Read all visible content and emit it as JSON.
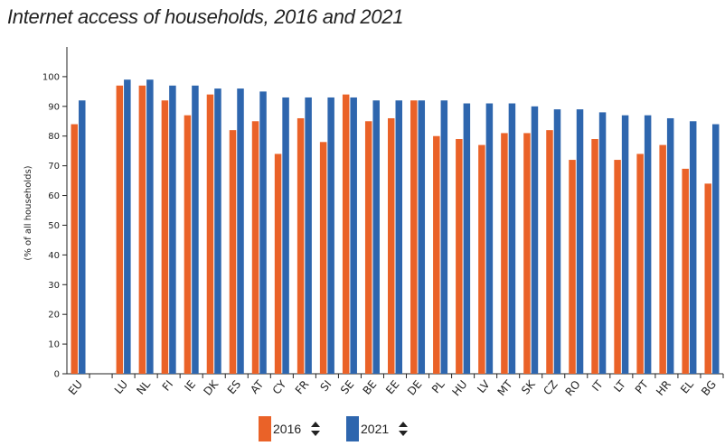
{
  "title": "Internet access of households, 2016 and 2021",
  "colors": {
    "series_2016": "#ea6228",
    "series_2021": "#2e66ae",
    "axis": "#222222"
  },
  "legend": [
    {
      "label": "2016",
      "icon": "sort-icon"
    },
    {
      "label": "2021",
      "icon": "sort-icon"
    }
  ],
  "chart_data": {
    "type": "bar",
    "title": "Internet access of households, 2016 and 2021",
    "xlabel": "",
    "ylabel": "(% of all households)",
    "ylim": [
      0,
      110
    ],
    "yticks": [
      0,
      10,
      20,
      30,
      40,
      50,
      60,
      70,
      80,
      90,
      100
    ],
    "categories": [
      "EU",
      "",
      "LU",
      "NL",
      "FI",
      "IE",
      "DK",
      "ES",
      "AT",
      "CY",
      "FR",
      "SI",
      "SE",
      "BE",
      "EE",
      "DE",
      "PL",
      "HU",
      "LV",
      "MT",
      "SK",
      "CZ",
      "RO",
      "IT",
      "LT",
      "PT",
      "HR",
      "EL",
      "BG"
    ],
    "series": [
      {
        "name": "2016",
        "values": [
          84,
          null,
          97,
          97,
          92,
          87,
          94,
          82,
          85,
          74,
          86,
          78,
          94,
          85,
          86,
          92,
          80,
          79,
          77,
          81,
          81,
          82,
          72,
          79,
          72,
          74,
          77,
          69,
          64
        ]
      },
      {
        "name": "2021",
        "values": [
          92,
          null,
          99,
          99,
          97,
          97,
          96,
          96,
          95,
          93,
          93,
          93,
          93,
          92,
          92,
          92,
          92,
          91,
          91,
          91,
          90,
          89,
          89,
          88,
          87,
          87,
          86,
          85,
          84
        ]
      }
    ]
  }
}
